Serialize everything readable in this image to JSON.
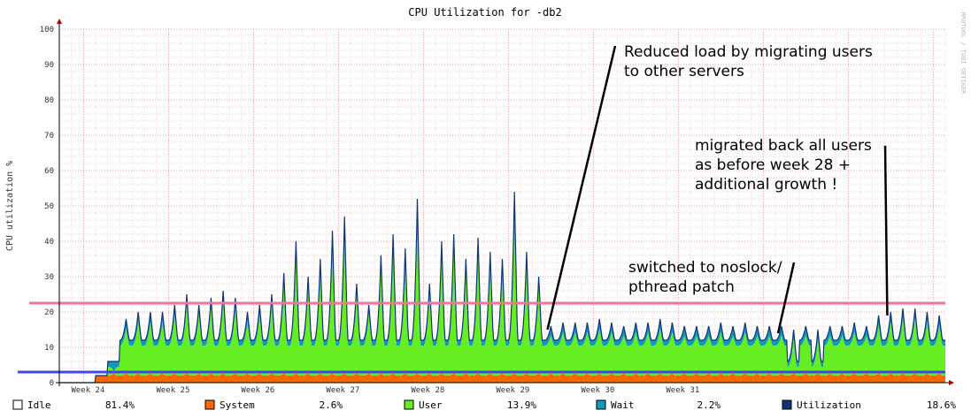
{
  "chart_data": {
    "type": "area",
    "title": "CPU Utilization for    -db2",
    "ylabel": "CPU utilization %",
    "xlabel": "",
    "ylim": [
      0,
      100
    ],
    "yticks": [
      0,
      10,
      20,
      30,
      40,
      50,
      60,
      70,
      80,
      90,
      100
    ],
    "x_ticks": [
      "Week 24",
      "Week 25",
      "Week 26",
      "Week 27",
      "Week 28",
      "Week 29",
      "Week 30",
      "Week 31"
    ],
    "watermark": "RRDTOOL / TOBI OETIKER",
    "grid": true,
    "stacked": true,
    "colors": {
      "system": "#ff6600",
      "user": "#66ee22",
      "wait": "#1199bb",
      "utilization": "#113377",
      "hline_high": "#ee7799",
      "hline_low": "#4444ee",
      "axis": "#aa0000",
      "grid_minor": "#f0a0a0",
      "grid_major": "#f08080"
    },
    "series": [
      {
        "name": "Idle",
        "key": "idle",
        "value_label": "81.4%"
      },
      {
        "name": "System",
        "key": "system",
        "value_label": "2.6%"
      },
      {
        "name": "User",
        "key": "user",
        "value_label": "13.9%"
      },
      {
        "name": "Wait",
        "key": "wait",
        "value_label": "2.2%"
      },
      {
        "name": "Utilization",
        "key": "utilization",
        "value_label": "18.6%"
      }
    ],
    "reference_lines": [
      22.5,
      3
    ],
    "daily_peaks": [
      0,
      0,
      0,
      2,
      6,
      18,
      20,
      20,
      20,
      22,
      25,
      22,
      24,
      26,
      24,
      20,
      22,
      25,
      31,
      40,
      30,
      35,
      43,
      47,
      28,
      22,
      36,
      42,
      38,
      52,
      28,
      40,
      42,
      35,
      41,
      37,
      35,
      54,
      37,
      30,
      16,
      17,
      17,
      17,
      18,
      17,
      16,
      17,
      17,
      18,
      17,
      16,
      16,
      16,
      17,
      16,
      17,
      16,
      16,
      16,
      15,
      16,
      15,
      16,
      16,
      17,
      16,
      19,
      20,
      21,
      21,
      20,
      19
    ],
    "baseline_user_level": 4,
    "annotations": [
      {
        "text_lines": [
          "Reduced load by migrating users",
          "to other servers"
        ],
        "point_day": 40,
        "point_value": 15
      },
      {
        "text_lines": [
          "migrated back all users",
          "as before week 28 +",
          "additional growth !"
        ],
        "point_day": 68,
        "point_value": 19
      },
      {
        "text_lines": [
          "switched to noslock/",
          "pthread patch"
        ],
        "point_day": 59,
        "point_value": 14
      }
    ]
  }
}
